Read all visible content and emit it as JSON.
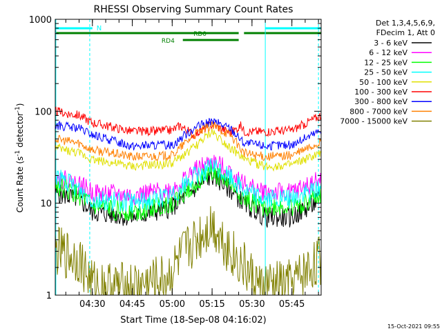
{
  "chart_data": {
    "type": "line",
    "title": "RHESSI Observing Summary Count Rates",
    "xlabel": "Start Time (18-Sep-08 04:16:02)",
    "ylabel_main": "Count Rate (s",
    "ylabel_sup1": "-1",
    "ylabel_mid": " detector",
    "ylabel_sup2": "-1",
    "ylabel_end": ")",
    "y_scale": "log",
    "ylim": [
      1,
      1000
    ],
    "xlim": [
      "04:16:02",
      "05:56:00"
    ],
    "x_ticks": [
      "04:30",
      "04:45",
      "05:00",
      "05:15",
      "05:30",
      "05:45"
    ],
    "y_ticks": [
      "1",
      "10",
      "100",
      "1000"
    ],
    "legend_header": [
      "Det 1,3,4,5,6,9,",
      "FDecim 1, Att 0"
    ],
    "legend_position": "right",
    "series": [
      {
        "name": "3 - 6 keV",
        "color": "#000000",
        "points": [
          [
            "04:16",
            13
          ],
          [
            "04:25",
            11
          ],
          [
            "04:30",
            8
          ],
          [
            "04:45",
            7
          ],
          [
            "05:00",
            9
          ],
          [
            "05:08",
            14
          ],
          [
            "05:15",
            20
          ],
          [
            "05:22",
            14
          ],
          [
            "05:27",
            10
          ],
          [
            "05:35",
            7
          ],
          [
            "05:45",
            7
          ],
          [
            "05:56",
            11
          ]
        ]
      },
      {
        "name": "6 - 12 keV",
        "color": "#ff00ff",
        "points": [
          [
            "04:16",
            19
          ],
          [
            "04:25",
            16
          ],
          [
            "04:30",
            13
          ],
          [
            "04:45",
            12
          ],
          [
            "05:00",
            14
          ],
          [
            "05:08",
            22
          ],
          [
            "05:15",
            28
          ],
          [
            "05:22",
            22
          ],
          [
            "05:27",
            16
          ],
          [
            "05:35",
            13
          ],
          [
            "05:45",
            13
          ],
          [
            "05:56",
            18
          ]
        ]
      },
      {
        "name": "12 - 25 keV",
        "color": "#00ff00",
        "points": [
          [
            "04:16",
            16
          ],
          [
            "04:25",
            12
          ],
          [
            "04:30",
            9
          ],
          [
            "04:45",
            8
          ],
          [
            "05:00",
            10
          ],
          [
            "05:08",
            16
          ],
          [
            "05:15",
            22
          ],
          [
            "05:22",
            16
          ],
          [
            "05:27",
            11
          ],
          [
            "05:35",
            9
          ],
          [
            "05:45",
            9
          ],
          [
            "05:56",
            12
          ]
        ]
      },
      {
        "name": "25 - 50 keV",
        "color": "#00ffff",
        "points": [
          [
            "04:16",
            20
          ],
          [
            "04:25",
            14
          ],
          [
            "04:30",
            11
          ],
          [
            "04:45",
            10
          ],
          [
            "05:00",
            12
          ],
          [
            "05:08",
            19
          ],
          [
            "05:15",
            25
          ],
          [
            "05:22",
            19
          ],
          [
            "05:27",
            14
          ],
          [
            "05:35",
            11
          ],
          [
            "05:45",
            11
          ],
          [
            "05:56",
            15
          ]
        ]
      },
      {
        "name": "50 - 100 keV",
        "color": "#e0e000",
        "points": [
          [
            "04:16",
            40
          ],
          [
            "04:25",
            35
          ],
          [
            "04:30",
            30
          ],
          [
            "04:45",
            25
          ],
          [
            "05:00",
            27
          ],
          [
            "05:08",
            40
          ],
          [
            "05:15",
            60
          ],
          [
            "05:22",
            40
          ],
          [
            "05:27",
            30
          ],
          [
            "05:35",
            25
          ],
          [
            "05:45",
            26
          ],
          [
            "05:56",
            35
          ]
        ]
      },
      {
        "name": "100 - 300 keV",
        "color": "#ff0000",
        "points": [
          [
            "04:16",
            100
          ],
          [
            "04:25",
            90
          ],
          [
            "04:30",
            75
          ],
          [
            "04:45",
            60
          ],
          [
            "05:00",
            62
          ],
          [
            "05:03",
            70
          ],
          [
            "05:08",
            55
          ],
          [
            "05:15",
            72
          ],
          [
            "05:22",
            58
          ],
          [
            "05:26",
            70
          ],
          [
            "05:27",
            60
          ],
          [
            "05:35",
            60
          ],
          [
            "05:45",
            62
          ],
          [
            "05:56",
            90
          ]
        ]
      },
      {
        "name": "300 - 800 keV",
        "color": "#0000ff",
        "points": [
          [
            "04:16",
            70
          ],
          [
            "04:25",
            65
          ],
          [
            "04:30",
            55
          ],
          [
            "04:45",
            42
          ],
          [
            "05:00",
            43
          ],
          [
            "05:08",
            65
          ],
          [
            "05:15",
            78
          ],
          [
            "05:22",
            65
          ],
          [
            "05:27",
            45
          ],
          [
            "05:35",
            42
          ],
          [
            "05:45",
            43
          ],
          [
            "05:56",
            62
          ]
        ]
      },
      {
        "name": "800 - 7000 keV",
        "color": "#ff8000",
        "points": [
          [
            "04:16",
            50
          ],
          [
            "04:25",
            45
          ],
          [
            "04:30",
            38
          ],
          [
            "04:45",
            32
          ],
          [
            "05:00",
            33
          ],
          [
            "05:08",
            55
          ],
          [
            "05:15",
            70
          ],
          [
            "05:22",
            55
          ],
          [
            "05:27",
            35
          ],
          [
            "05:35",
            32
          ],
          [
            "05:45",
            33
          ],
          [
            "05:56",
            46
          ]
        ]
      },
      {
        "name": "7000 - 15000 keV",
        "color": "#808000",
        "points": [
          [
            "04:16",
            3
          ],
          [
            "04:25",
            2.5
          ],
          [
            "04:30",
            1.3
          ],
          [
            "04:45",
            1.2
          ],
          [
            "04:58",
            1.5
          ],
          [
            "05:05",
            3
          ],
          [
            "05:15",
            6
          ],
          [
            "05:22",
            3
          ],
          [
            "05:27",
            2
          ],
          [
            "05:33",
            1.2
          ],
          [
            "05:45",
            1.3
          ],
          [
            "05:56",
            2.5
          ]
        ]
      }
    ],
    "annotations": [
      {
        "label": "N",
        "color": "#00ffff"
      },
      {
        "label": "RD0",
        "color": "#008000"
      },
      {
        "label": "RD4",
        "color": "#008000"
      }
    ]
  },
  "footer": {
    "timestamp": "15-Oct-2021 09:55"
  }
}
